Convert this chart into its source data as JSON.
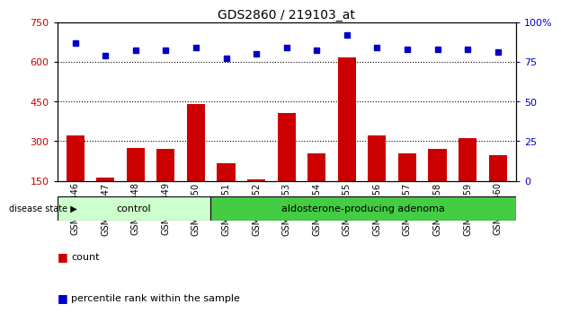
{
  "title": "GDS2860 / 219103_at",
  "samples": [
    "GSM211446",
    "GSM211447",
    "GSM211448",
    "GSM211449",
    "GSM211450",
    "GSM211451",
    "GSM211452",
    "GSM211453",
    "GSM211454",
    "GSM211455",
    "GSM211456",
    "GSM211457",
    "GSM211458",
    "GSM211459",
    "GSM211460"
  ],
  "bar_values": [
    320,
    163,
    275,
    272,
    440,
    215,
    155,
    405,
    255,
    615,
    320,
    255,
    270,
    310,
    245
  ],
  "dot_values": [
    87,
    79,
    82,
    82,
    84,
    77,
    80,
    84,
    82,
    92,
    84,
    83,
    83,
    83,
    81
  ],
  "ylim_left": [
    150,
    750
  ],
  "ylim_right": [
    0,
    100
  ],
  "yticks_left": [
    150,
    300,
    450,
    600,
    750
  ],
  "yticks_right": [
    0,
    25,
    50,
    75,
    100
  ],
  "hlines": [
    300,
    450,
    600
  ],
  "bar_color": "#cc0000",
  "dot_color": "#0000cc",
  "control_samples": 5,
  "control_label": "control",
  "disease_label": "aldosterone-producing adenoma",
  "disease_state_label": "disease state",
  "legend_count_label": "count",
  "legend_percentile_label": "percentile rank within the sample",
  "control_color": "#ccffcc",
  "disease_color": "#44cc44",
  "tick_label_color_left": "#cc0000",
  "tick_label_color_right": "#0000cc",
  "bar_width": 0.6,
  "dot_marker_size": 5
}
